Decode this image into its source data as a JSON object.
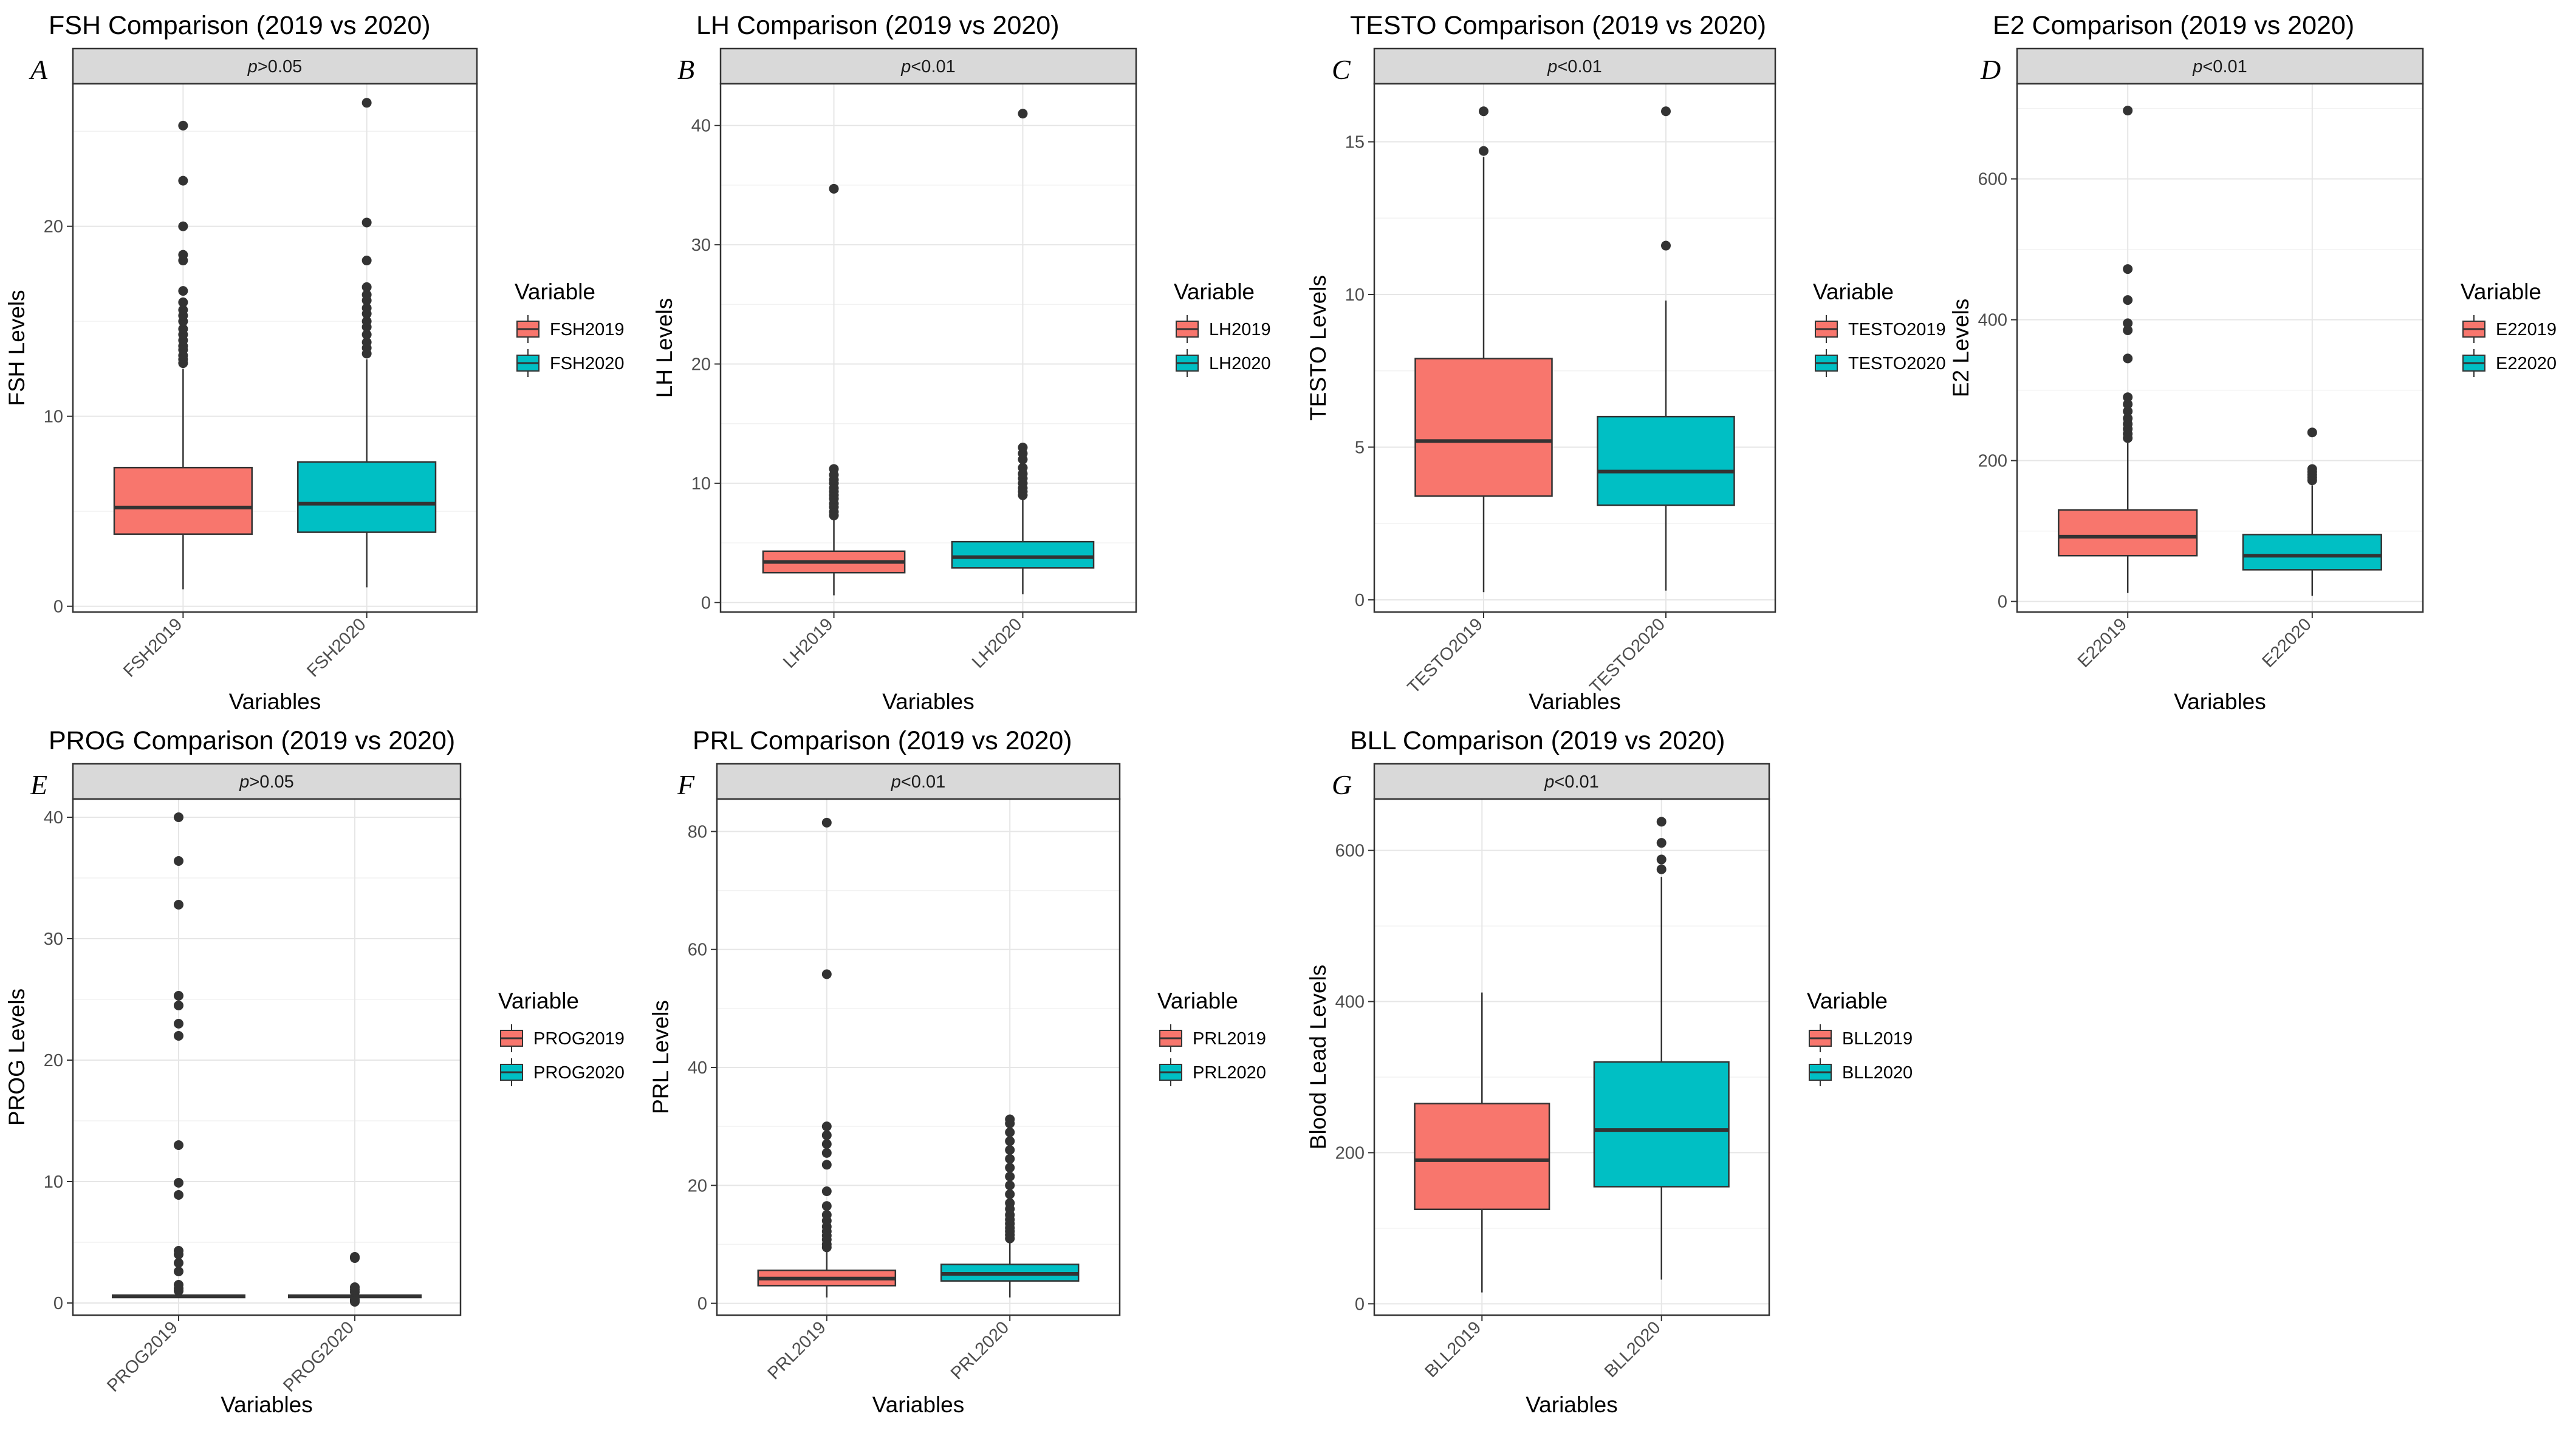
{
  "colors": {
    "first": "#F8766D",
    "second": "#00BFC4"
  },
  "chart_data": [
    {
      "type": "box",
      "id": "fsh",
      "letter": "A",
      "title": "FSH Comparison (2019 vs 2020)",
      "strip": {
        "prefix": "p",
        "rest": ">0.05"
      },
      "xlabel": "Variables",
      "ylabel": "FSH Levels",
      "ylim": [
        -0.3,
        27.5
      ],
      "yticks": [
        0,
        10,
        20
      ],
      "legend_title": "Variable",
      "categories": [
        "FSH2019",
        "FSH2020"
      ],
      "boxes": [
        {
          "name": "FSH2019",
          "min": 0.9,
          "q1": 3.8,
          "median": 5.2,
          "q3": 7.3,
          "max": 12.5,
          "outliers": [
            12.8,
            13.0,
            13.2,
            13.5,
            13.7,
            14.0,
            14.3,
            14.6,
            15.0,
            15.3,
            15.6,
            16.0,
            16.6,
            18.2,
            18.5,
            20.0,
            22.4,
            25.3
          ]
        },
        {
          "name": "FSH2020",
          "min": 1.0,
          "q1": 3.9,
          "median": 5.4,
          "q3": 7.6,
          "max": 13.0,
          "outliers": [
            13.3,
            13.6,
            13.9,
            14.3,
            14.7,
            15.0,
            15.4,
            15.7,
            16.1,
            16.4,
            16.8,
            18.2,
            20.2,
            26.5
          ]
        }
      ]
    },
    {
      "type": "box",
      "id": "lh",
      "letter": "B",
      "title": "LH Comparison (2019 vs 2020)",
      "strip": {
        "prefix": "p",
        "rest": "<0.01"
      },
      "xlabel": "Variables",
      "ylabel": "LH Levels",
      "ylim": [
        -0.8,
        43.5
      ],
      "yticks": [
        0,
        10,
        20,
        30,
        40
      ],
      "legend_title": "Variable",
      "categories": [
        "LH2019",
        "LH2020"
      ],
      "boxes": [
        {
          "name": "LH2019",
          "min": 0.6,
          "q1": 2.5,
          "median": 3.4,
          "q3": 4.3,
          "max": 7.0,
          "outliers": [
            7.3,
            7.6,
            8.0,
            8.3,
            8.7,
            9.0,
            9.3,
            9.6,
            10.0,
            10.3,
            10.7,
            11.2,
            34.7
          ]
        },
        {
          "name": "LH2020",
          "min": 0.7,
          "q1": 2.9,
          "median": 3.8,
          "q3": 5.1,
          "max": 8.7,
          "outliers": [
            9.0,
            9.3,
            9.6,
            10.0,
            10.4,
            10.8,
            11.3,
            12.0,
            12.5,
            13.0,
            41.0
          ]
        }
      ]
    },
    {
      "type": "box",
      "id": "testo",
      "letter": "C",
      "title": "TESTO Comparison (2019 vs 2020)",
      "strip": {
        "prefix": "p",
        "rest": "<0.01"
      },
      "xlabel": "Variables",
      "ylabel": "TESTO Levels",
      "ylim": [
        -0.4,
        16.9
      ],
      "yticks": [
        0,
        5,
        10,
        15
      ],
      "legend_title": "Variable",
      "categories": [
        "TESTO2019",
        "TESTO2020"
      ],
      "boxes": [
        {
          "name": "TESTO2019",
          "min": 0.25,
          "q1": 3.4,
          "median": 5.2,
          "q3": 7.9,
          "max": 14.5,
          "outliers": [
            14.7,
            16.0
          ]
        },
        {
          "name": "TESTO2020",
          "min": 0.3,
          "q1": 3.1,
          "median": 4.2,
          "q3": 6.0,
          "max": 9.8,
          "outliers": [
            11.6,
            16.0
          ]
        }
      ]
    },
    {
      "type": "box",
      "id": "e2",
      "letter": "D",
      "title": "E2 Comparison (2019 vs 2020)",
      "strip": {
        "prefix": "p",
        "rest": "<0.01"
      },
      "xlabel": "Variables",
      "ylabel": "E2 Levels",
      "ylim": [
        -15,
        735
      ],
      "yticks": [
        0,
        200,
        400,
        600
      ],
      "legend_title": "Variable",
      "categories": [
        "E22019",
        "E22020"
      ],
      "boxes": [
        {
          "name": "E22019",
          "min": 12,
          "q1": 65,
          "median": 92,
          "q3": 130,
          "max": 225,
          "outliers": [
            232,
            238,
            245,
            252,
            260,
            270,
            280,
            290,
            345,
            385,
            395,
            428,
            472,
            697
          ]
        },
        {
          "name": "E22020",
          "min": 8,
          "q1": 45,
          "median": 65,
          "q3": 95,
          "max": 165,
          "outliers": [
            172,
            176,
            180,
            184,
            188,
            240
          ]
        }
      ]
    },
    {
      "type": "box",
      "id": "prog",
      "letter": "E",
      "title": "PROG Comparison (2019 vs 2020)",
      "strip": {
        "prefix": "p",
        "rest": ">0.05"
      },
      "xlabel": "Variables",
      "ylabel": "PROG Levels",
      "ylim": [
        -1.0,
        41.5
      ],
      "yticks": [
        0,
        10,
        20,
        30,
        40
      ],
      "legend_title": "Variable",
      "categories": [
        "PROG2019",
        "PROG2020"
      ],
      "boxes": [
        {
          "name": "PROG2019",
          "min": 0.4,
          "q1": 0.45,
          "median": 0.55,
          "q3": 0.65,
          "max": 0.8,
          "outliers": [
            1.0,
            1.2,
            1.5,
            2.6,
            3.3,
            4.0,
            4.3,
            8.9,
            9.9,
            13.0,
            22.0,
            23.0,
            24.5,
            25.3,
            32.8,
            36.4,
            40.0
          ]
        },
        {
          "name": "PROG2020",
          "min": 0.4,
          "q1": 0.45,
          "median": 0.55,
          "q3": 0.65,
          "max": 0.8,
          "outliers": [
            0.1,
            0.2,
            0.3,
            0.9,
            1.1,
            1.3,
            3.7,
            3.8
          ]
        }
      ]
    },
    {
      "type": "box",
      "id": "prl",
      "letter": "F",
      "title": "PRL Comparison (2019 vs 2020)",
      "strip": {
        "prefix": "p",
        "rest": "<0.01"
      },
      "xlabel": "Variables",
      "ylabel": "PRL Levels",
      "ylim": [
        -2,
        85.5
      ],
      "yticks": [
        0,
        20,
        40,
        60,
        80
      ],
      "legend_title": "Variable",
      "categories": [
        "PRL2019",
        "PRL2020"
      ],
      "boxes": [
        {
          "name": "PRL2019",
          "min": 1.0,
          "q1": 3.0,
          "median": 4.2,
          "q3": 5.6,
          "max": 9.0,
          "outliers": [
            9.5,
            10.0,
            10.8,
            11.5,
            12.2,
            13.0,
            14.0,
            15.0,
            16.5,
            19.0,
            23.5,
            25.5,
            27.0,
            28.5,
            30.0,
            55.8,
            81.5
          ]
        },
        {
          "name": "PRL2020",
          "min": 1.0,
          "q1": 3.8,
          "median": 5.0,
          "q3": 6.6,
          "max": 10.5,
          "outliers": [
            11.0,
            11.6,
            12.2,
            12.8,
            13.5,
            14.2,
            15.0,
            16.0,
            17.0,
            18.5,
            20.0,
            21.5,
            23.0,
            24.5,
            26.0,
            27.5,
            29.0,
            30.5,
            31.2
          ]
        }
      ]
    },
    {
      "type": "box",
      "id": "bll",
      "letter": "G",
      "title": "BLL Comparison (2019 vs 2020)",
      "strip": {
        "prefix": "p",
        "rest": "<0.01"
      },
      "xlabel": "Variables",
      "ylabel": "Blood Lead Levels",
      "ylim": [
        -15,
        668
      ],
      "yticks": [
        0,
        200,
        400,
        600
      ],
      "legend_title": "Variable",
      "categories": [
        "BLL2019",
        "BLL2020"
      ],
      "boxes": [
        {
          "name": "BLL2019",
          "min": 15,
          "q1": 125,
          "median": 190,
          "q3": 265,
          "max": 412,
          "outliers": []
        },
        {
          "name": "BLL2020",
          "min": 32,
          "q1": 155,
          "median": 230,
          "q3": 320,
          "max": 565,
          "outliers": [
            575,
            588,
            610,
            638
          ]
        }
      ]
    }
  ]
}
